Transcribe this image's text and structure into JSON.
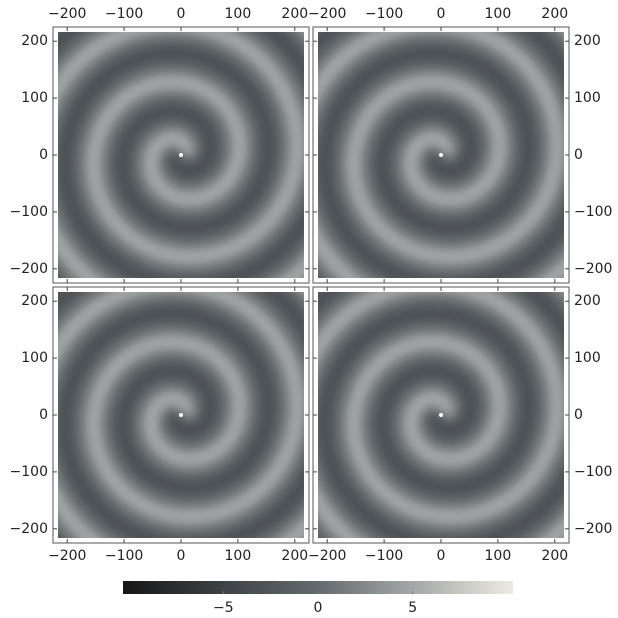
{
  "chart_data": [
    {
      "type": "density",
      "xlim": [
        -225,
        225
      ],
      "ylim": [
        -225,
        225
      ],
      "xticks": [
        {
          "value": -200,
          "label": "−200"
        },
        {
          "value": -100,
          "label": "−100"
        },
        0,
        100,
        200
      ],
      "yticks": [
        {
          "value": -200,
          "label": "−200"
        },
        {
          "value": -100,
          "label": "−100"
        },
        0,
        100,
        200
      ]
    },
    {
      "type": "density",
      "xlim": [
        -225,
        225
      ],
      "ylim": [
        -225,
        225
      ],
      "xticks": [
        {
          "value": -200,
          "label": "−200"
        },
        {
          "value": -100,
          "label": "−100"
        },
        0,
        100,
        200
      ],
      "yticks": [
        {
          "value": -200,
          "label": "−200"
        },
        {
          "value": -100,
          "label": "−100"
        },
        0,
        100,
        200
      ]
    },
    {
      "type": "density",
      "xlim": [
        -225,
        225
      ],
      "ylim": [
        -225,
        225
      ],
      "xticks": [
        {
          "value": -200,
          "label": "−200"
        },
        {
          "value": -100,
          "label": "−100"
        },
        0,
        100,
        200
      ],
      "yticks": [
        {
          "value": -200,
          "label": "−200"
        },
        {
          "value": -100,
          "label": "−100"
        },
        0,
        100,
        200
      ]
    },
    {
      "type": "density",
      "xlim": [
        -225,
        225
      ],
      "ylim": [
        -225,
        225
      ],
      "xticks": [
        {
          "value": -200,
          "label": "−200"
        },
        {
          "value": -100,
          "label": "−100"
        },
        0,
        100,
        200
      ],
      "yticks": [
        {
          "value": -200,
          "label": "−200"
        },
        {
          "value": -100,
          "label": "−100"
        },
        0,
        100,
        200
      ]
    },
    {
      "type": "colorbar",
      "xlim": [
        -10.3,
        10.3
      ],
      "xticks": [
        {
          "value": -5,
          "label": "−5"
        },
        0,
        5
      ]
    }
  ]
}
